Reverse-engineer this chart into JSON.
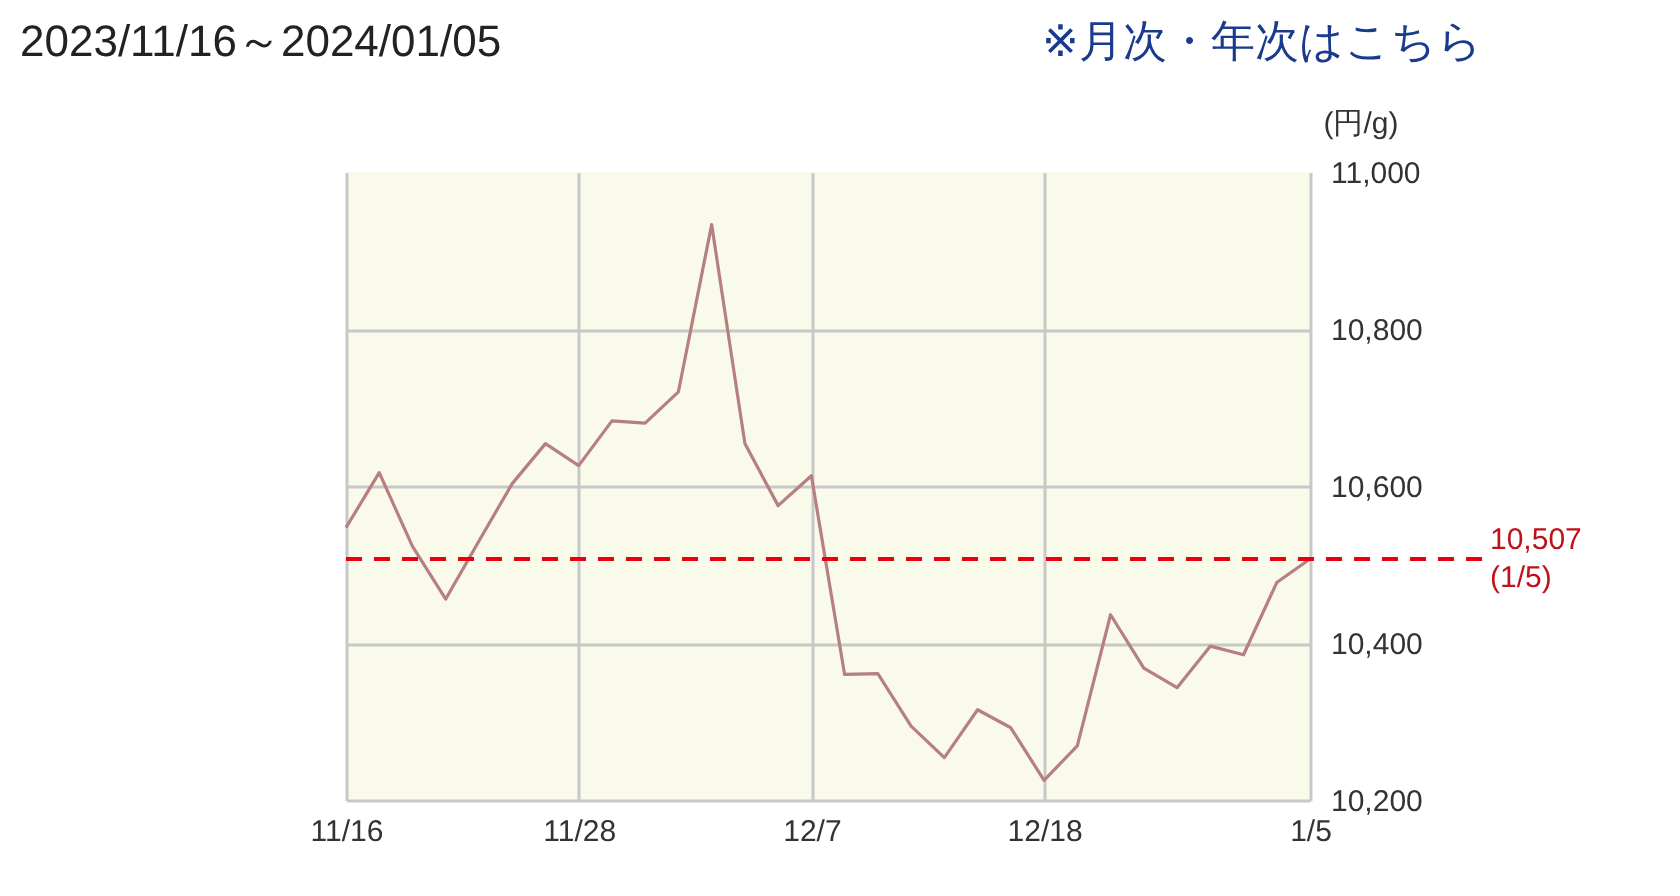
{
  "chart_data": {
    "type": "line",
    "title": "2023/11/16～2024/01/05",
    "ylabel": "(円/g)",
    "annotations": [
      "※月次・年次はこちら"
    ],
    "categories": [
      "11/16",
      null,
      null,
      null,
      null,
      null,
      null,
      "11/28",
      null,
      null,
      null,
      null,
      null,
      null,
      "12/7",
      null,
      null,
      null,
      null,
      null,
      null,
      "12/18",
      null,
      null,
      null,
      null,
      null,
      null,
      null,
      "1/5"
    ],
    "series": [
      {
        "color": "#b57f83",
        "values": [
          10547,
          10617,
          10523,
          10456,
          10530,
          10603,
          10654,
          10626,
          10683,
          10680,
          10720,
          10933,
          10654,
          10575,
          10613,
          10360,
          10361,
          10294,
          10254,
          10315,
          10292,
          10225,
          10269,
          10436,
          10368,
          10343,
          10396,
          10385,
          10477,
          10507
        ]
      }
    ],
    "ylim": [
      10200,
      11000
    ],
    "yticks": [
      {
        "value": 10200,
        "label": "10,200"
      },
      {
        "value": 10400,
        "label": "10,400"
      },
      {
        "value": 10600,
        "label": "10,600"
      },
      {
        "value": 10800,
        "label": "10,800"
      },
      {
        "value": 11000,
        "label": "11,000"
      }
    ],
    "grid": true,
    "line_style": "solid",
    "ref_lines": [
      {
        "axis": "y",
        "value": 10507,
        "label": "10,507\n(1/5)",
        "color": "#e60012",
        "line_style": "dashed"
      }
    ]
  }
}
